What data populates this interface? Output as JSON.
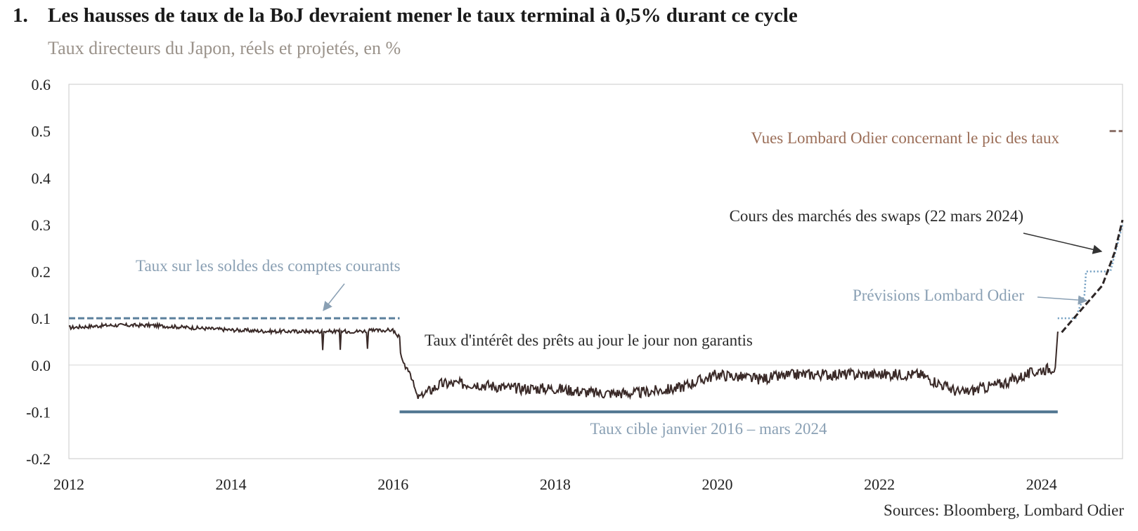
{
  "header": {
    "number": "1.",
    "title": "Les hausses de taux de la BoJ devraient mener le taux terminal à 0,5% durant ce cycle",
    "subtitle": "Taux directeurs du Japon, réels et projetés, en %"
  },
  "source": "Sources: Bloomberg, Lombard Odier",
  "colors": {
    "overnight": "#3a2a28",
    "current_account": "#5a7f9c",
    "target": "#4f7590",
    "forecast": "#6e9cc0",
    "swaps": "#2d2626",
    "peak": "#8a7068",
    "peak_text": "#9b6e58",
    "blue_text": "#8aa0b4",
    "dark_text": "#2b2b2b"
  },
  "chart_data": {
    "type": "line",
    "title": "Les hausses de taux de la BoJ devraient mener le taux terminal à 0,5% durant ce cycle",
    "subtitle": "Taux directeurs du Japon, réels et projetés, en %",
    "xlabel": "",
    "ylabel": "",
    "xlim": [
      2012,
      2025
    ],
    "ylim": [
      -0.2,
      0.6
    ],
    "x_ticks": [
      "2012",
      "2014",
      "2016",
      "2018",
      "2020",
      "2022",
      "2024"
    ],
    "y_ticks": [
      "0.6",
      "0.5",
      "0.4",
      "0.3",
      "0.2",
      "0.1",
      "0.0",
      "-0.1",
      "-0.2"
    ],
    "series": [
      {
        "name": "Taux d'intérêt des prêts au jour le jour non garantis",
        "style": "solid",
        "x": [
          2012.0,
          2012.5,
          2013.0,
          2013.5,
          2014.0,
          2014.5,
          2015.0,
          2015.5,
          2016.0,
          2016.08,
          2016.12,
          2016.2,
          2016.3,
          2016.6,
          2017.0,
          2017.5,
          2018.0,
          2018.5,
          2019.0,
          2019.5,
          2020.0,
          2020.5,
          2021.0,
          2021.5,
          2022.0,
          2022.5,
          2023.0,
          2023.5,
          2024.0,
          2024.17,
          2024.2,
          2024.21
        ],
        "y": [
          0.08,
          0.085,
          0.085,
          0.08,
          0.075,
          0.072,
          0.072,
          0.072,
          0.075,
          0.05,
          0.0,
          -0.01,
          -0.07,
          -0.04,
          -0.04,
          -0.05,
          -0.05,
          -0.06,
          -0.06,
          -0.05,
          -0.02,
          -0.03,
          -0.02,
          -0.02,
          -0.02,
          -0.02,
          -0.06,
          -0.04,
          -0.01,
          -0.005,
          0.07,
          0.07
        ]
      },
      {
        "name": "Taux sur les soldes des comptes courants",
        "style": "dashed",
        "x": [
          2012.0,
          2016.08
        ],
        "y": [
          0.1,
          0.1
        ]
      },
      {
        "name": "Taux cible janvier 2016 – mars 2024",
        "style": "solid-thick",
        "x": [
          2016.08,
          2024.2
        ],
        "y": [
          -0.1,
          -0.1
        ]
      },
      {
        "name": "Prévisions Lombard Odier",
        "style": "dotted",
        "x": [
          2024.2,
          2024.42,
          2024.53,
          2024.55,
          2024.8,
          2024.85,
          2025.0
        ],
        "y": [
          0.1,
          0.1,
          0.15,
          0.2,
          0.2,
          0.2,
          0.3
        ]
      },
      {
        "name": "Cours des marchés des swaps (22 mars 2024)",
        "style": "dashed-bold",
        "x": [
          2024.25,
          2024.5,
          2024.75,
          2024.9,
          2025.0
        ],
        "y": [
          0.07,
          0.12,
          0.17,
          0.24,
          0.31
        ]
      },
      {
        "name": "Vues Lombard Odier concernant le pic des taux",
        "style": "dashed",
        "x": [
          2024.84,
          2025.0
        ],
        "y": [
          0.5,
          0.5
        ]
      }
    ],
    "annotations": [
      "Taux sur les soldes des comptes courants",
      "Taux d'intérêt des prêts au jour le jour non garantis",
      "Taux cible janvier 2016 – mars 2024",
      "Vues Lombard Odier concernant le pic des taux",
      "Cours des marchés des swaps (22 mars 2024)",
      "Prévisions Lombard Odier"
    ],
    "grid": false,
    "legend": "none"
  }
}
